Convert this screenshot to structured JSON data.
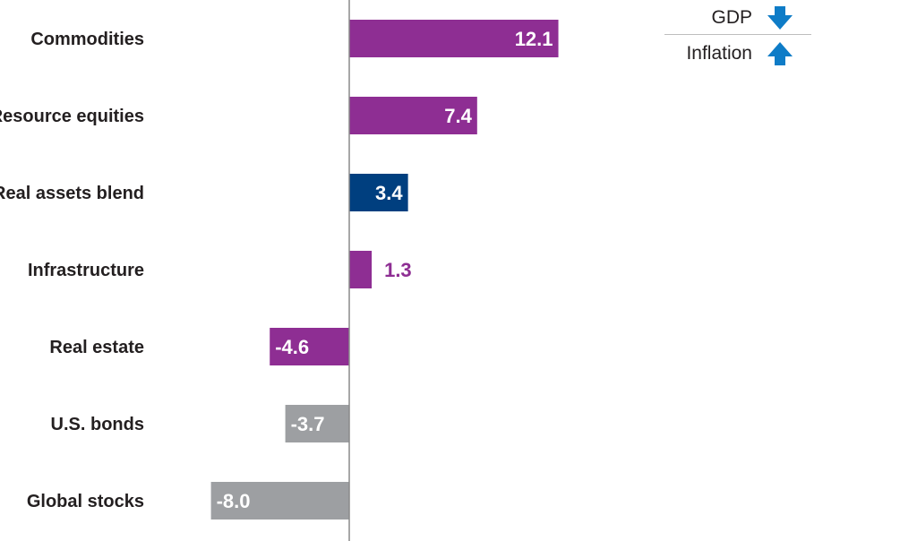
{
  "chart_data": {
    "type": "bar",
    "orientation": "horizontal",
    "categories": [
      "Commodities",
      "Resource equities",
      "Real assets blend",
      "Infrastructure",
      "Real estate",
      "U.S. bonds",
      "Global stocks"
    ],
    "values": [
      12.1,
      7.4,
      3.4,
      1.3,
      -4.6,
      -3.7,
      -8.0
    ],
    "value_labels": [
      "12.1",
      "7.4",
      "3.4",
      "1.3",
      "-4.6",
      "-3.7",
      "-8.0"
    ],
    "bar_colors": [
      "#8e2e93",
      "#8e2e93",
      "#003f7f",
      "#8e2e93",
      "#8e2e93",
      "#9d9fa2",
      "#9d9fa2"
    ],
    "xlim": [
      -8.0,
      12.1
    ],
    "grid": false,
    "title": "",
    "xlabel": "",
    "ylabel": ""
  },
  "legend": {
    "placement": "top-right",
    "items": [
      {
        "label": "GDP",
        "icon": "arrow-down-icon",
        "color": "#0e7cc7"
      },
      {
        "label": "Inflation",
        "icon": "arrow-up-icon",
        "color": "#0e7cc7"
      }
    ]
  }
}
